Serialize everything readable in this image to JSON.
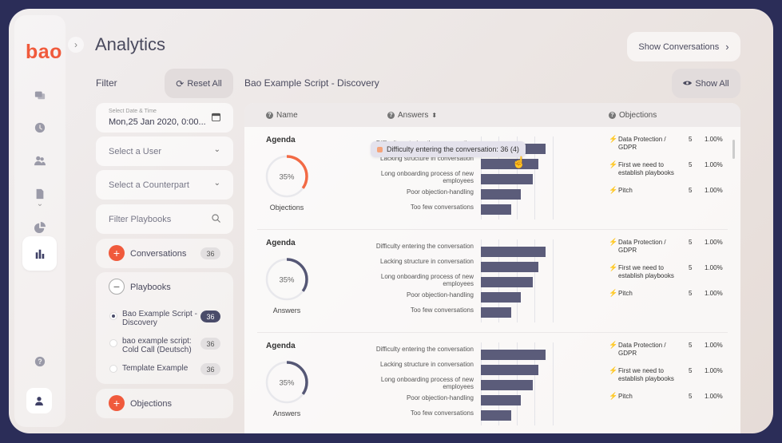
{
  "app": {
    "logo": "bao",
    "page_title": "Analytics"
  },
  "nav": {
    "icons": [
      "conversations-icon",
      "history-icon",
      "users-icon",
      "document-icon",
      "pie-chart-icon",
      "bar-chart-icon",
      "help-icon",
      "user-icon"
    ],
    "expand_glyph": "›",
    "doc_chevron": "⌄"
  },
  "header": {
    "show_conversations": "Show Conversations"
  },
  "filter": {
    "title": "Filter",
    "reset_label": "Reset All",
    "date_label": "Select Date & Time",
    "date_value": "Mon,25 Jan 2020, 0:00...",
    "user_placeholder": "Select a User",
    "counterpart_placeholder": "Select a Counterpart",
    "playbook_search_placeholder": "Filter Playbooks",
    "conversations": {
      "label": "Conversations",
      "count": "36"
    },
    "playbooks": {
      "label": "Playbooks",
      "items": [
        {
          "label": "Bao Example Script - Discovery",
          "count": "36",
          "selected": true
        },
        {
          "label": "bao example script: Cold Call (Deutsch)",
          "count": "36",
          "selected": false
        },
        {
          "label": "Template Example",
          "count": "36",
          "selected": false
        }
      ]
    },
    "objections": {
      "label": "Objections"
    }
  },
  "main": {
    "script_title": "Bao Example Script - Discovery",
    "show_all_label": "Show All",
    "columns": {
      "name": "Name",
      "answers": "Answers",
      "objections": "Objections"
    },
    "tooltip": "Difficulty entering the conversation: 36 (4)",
    "rows": [
      {
        "name": "Agenda",
        "donut_label": "35%",
        "donut_percent": 35,
        "donut_caption": "Objections",
        "donut_color": "#f26a45",
        "answers": [
          {
            "label": "Difficulty entering the conversation",
            "value": 36
          },
          {
            "label": "Lacking structure in conversation",
            "value": 32
          },
          {
            "label": "Long onboarding process of new employees",
            "value": 29
          },
          {
            "label": "Poor objection-handling",
            "value": 22
          },
          {
            "label": "Too few conversations",
            "value": 17
          }
        ],
        "objections": [
          {
            "label": "Data Protection / GDPR",
            "count": "5",
            "pct": "1.00%"
          },
          {
            "label": "First we need to establish playbooks",
            "count": "5",
            "pct": "1.00%"
          },
          {
            "label": "Pitch",
            "count": "5",
            "pct": "1.00%"
          }
        ]
      },
      {
        "name": "Agenda",
        "donut_label": "35%",
        "donut_percent": 35,
        "donut_caption": "Answers",
        "donut_color": "#555775",
        "answers": [
          {
            "label": "Difficulty entering the conversation",
            "value": 36
          },
          {
            "label": "Lacking structure in conversation",
            "value": 32
          },
          {
            "label": "Long onboarding process of new employees",
            "value": 29
          },
          {
            "label": "Poor objection-handling",
            "value": 22
          },
          {
            "label": "Too few conversations",
            "value": 17
          }
        ],
        "objections": [
          {
            "label": "Data Protection / GDPR",
            "count": "5",
            "pct": "1.00%"
          },
          {
            "label": "First we need to establish playbooks",
            "count": "5",
            "pct": "1.00%"
          },
          {
            "label": "Pitch",
            "count": "5",
            "pct": "1.00%"
          }
        ]
      },
      {
        "name": "Agenda",
        "donut_label": "35%",
        "donut_percent": 35,
        "donut_caption": "Answers",
        "donut_color": "#555775",
        "answers": [
          {
            "label": "Difficulty entering the conversation",
            "value": 36
          },
          {
            "label": "Lacking structure in conversation",
            "value": 32
          },
          {
            "label": "Long onboarding process of new employees",
            "value": 29
          },
          {
            "label": "Poor objection-handling",
            "value": 22
          },
          {
            "label": "Too few conversations",
            "value": 17
          }
        ],
        "objections": [
          {
            "label": "Data Protection / GDPR",
            "count": "5",
            "pct": "1.00%"
          },
          {
            "label": "First we need to establish playbooks",
            "count": "5",
            "pct": "1.00%"
          },
          {
            "label": "Pitch",
            "count": "5",
            "pct": "1.00%"
          }
        ]
      }
    ]
  },
  "colors": {
    "accent": "#f05a3c",
    "bar": "#5b5c7a",
    "frame": "#2b2d58"
  }
}
